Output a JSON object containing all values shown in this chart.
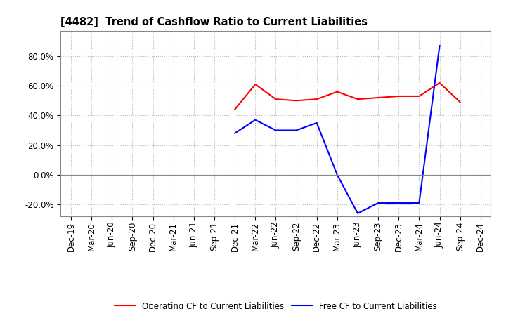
{
  "title": "[4482]  Trend of Cashflow Ratio to Current Liabilities",
  "x_labels": [
    "Dec-19",
    "Mar-20",
    "Jun-20",
    "Sep-20",
    "Dec-20",
    "Mar-21",
    "Jun-21",
    "Sep-21",
    "Dec-21",
    "Mar-22",
    "Jun-22",
    "Sep-22",
    "Dec-22",
    "Mar-23",
    "Jun-23",
    "Sep-23",
    "Dec-23",
    "Mar-24",
    "Jun-24",
    "Sep-24",
    "Dec-24"
  ],
  "operating_cf": {
    "dates": [
      "Dec-21",
      "Mar-22",
      "Jun-22",
      "Sep-22",
      "Dec-22",
      "Mar-23",
      "Jun-23",
      "Sep-23",
      "Dec-23",
      "Mar-24",
      "Jun-24",
      "Sep-24"
    ],
    "values": [
      0.44,
      0.61,
      0.51,
      0.5,
      0.51,
      0.56,
      0.51,
      0.52,
      0.53,
      0.53,
      0.62,
      0.49
    ],
    "color": "#ff0000"
  },
  "free_cf": {
    "dates": [
      "Dec-21",
      "Mar-22",
      "Jun-22",
      "Sep-22",
      "Dec-22",
      "Mar-23",
      "Jun-23",
      "Sep-23",
      "Dec-23",
      "Mar-24",
      "Jun-24"
    ],
    "values": [
      0.28,
      0.37,
      0.3,
      0.3,
      0.35,
      0.0,
      -0.26,
      -0.19,
      -0.19,
      -0.19,
      0.87
    ],
    "color": "#0000ff"
  },
  "ylim": [
    -0.28,
    0.97
  ],
  "yticks": [
    -0.2,
    0.0,
    0.2,
    0.4,
    0.6,
    0.8
  ],
  "background_color": "#ffffff",
  "grid_color": "#bbbbbb",
  "legend_labels": [
    "Operating CF to Current Liabilities",
    "Free CF to Current Liabilities"
  ],
  "title_fontsize": 10.5,
  "tick_fontsize": 8.5
}
